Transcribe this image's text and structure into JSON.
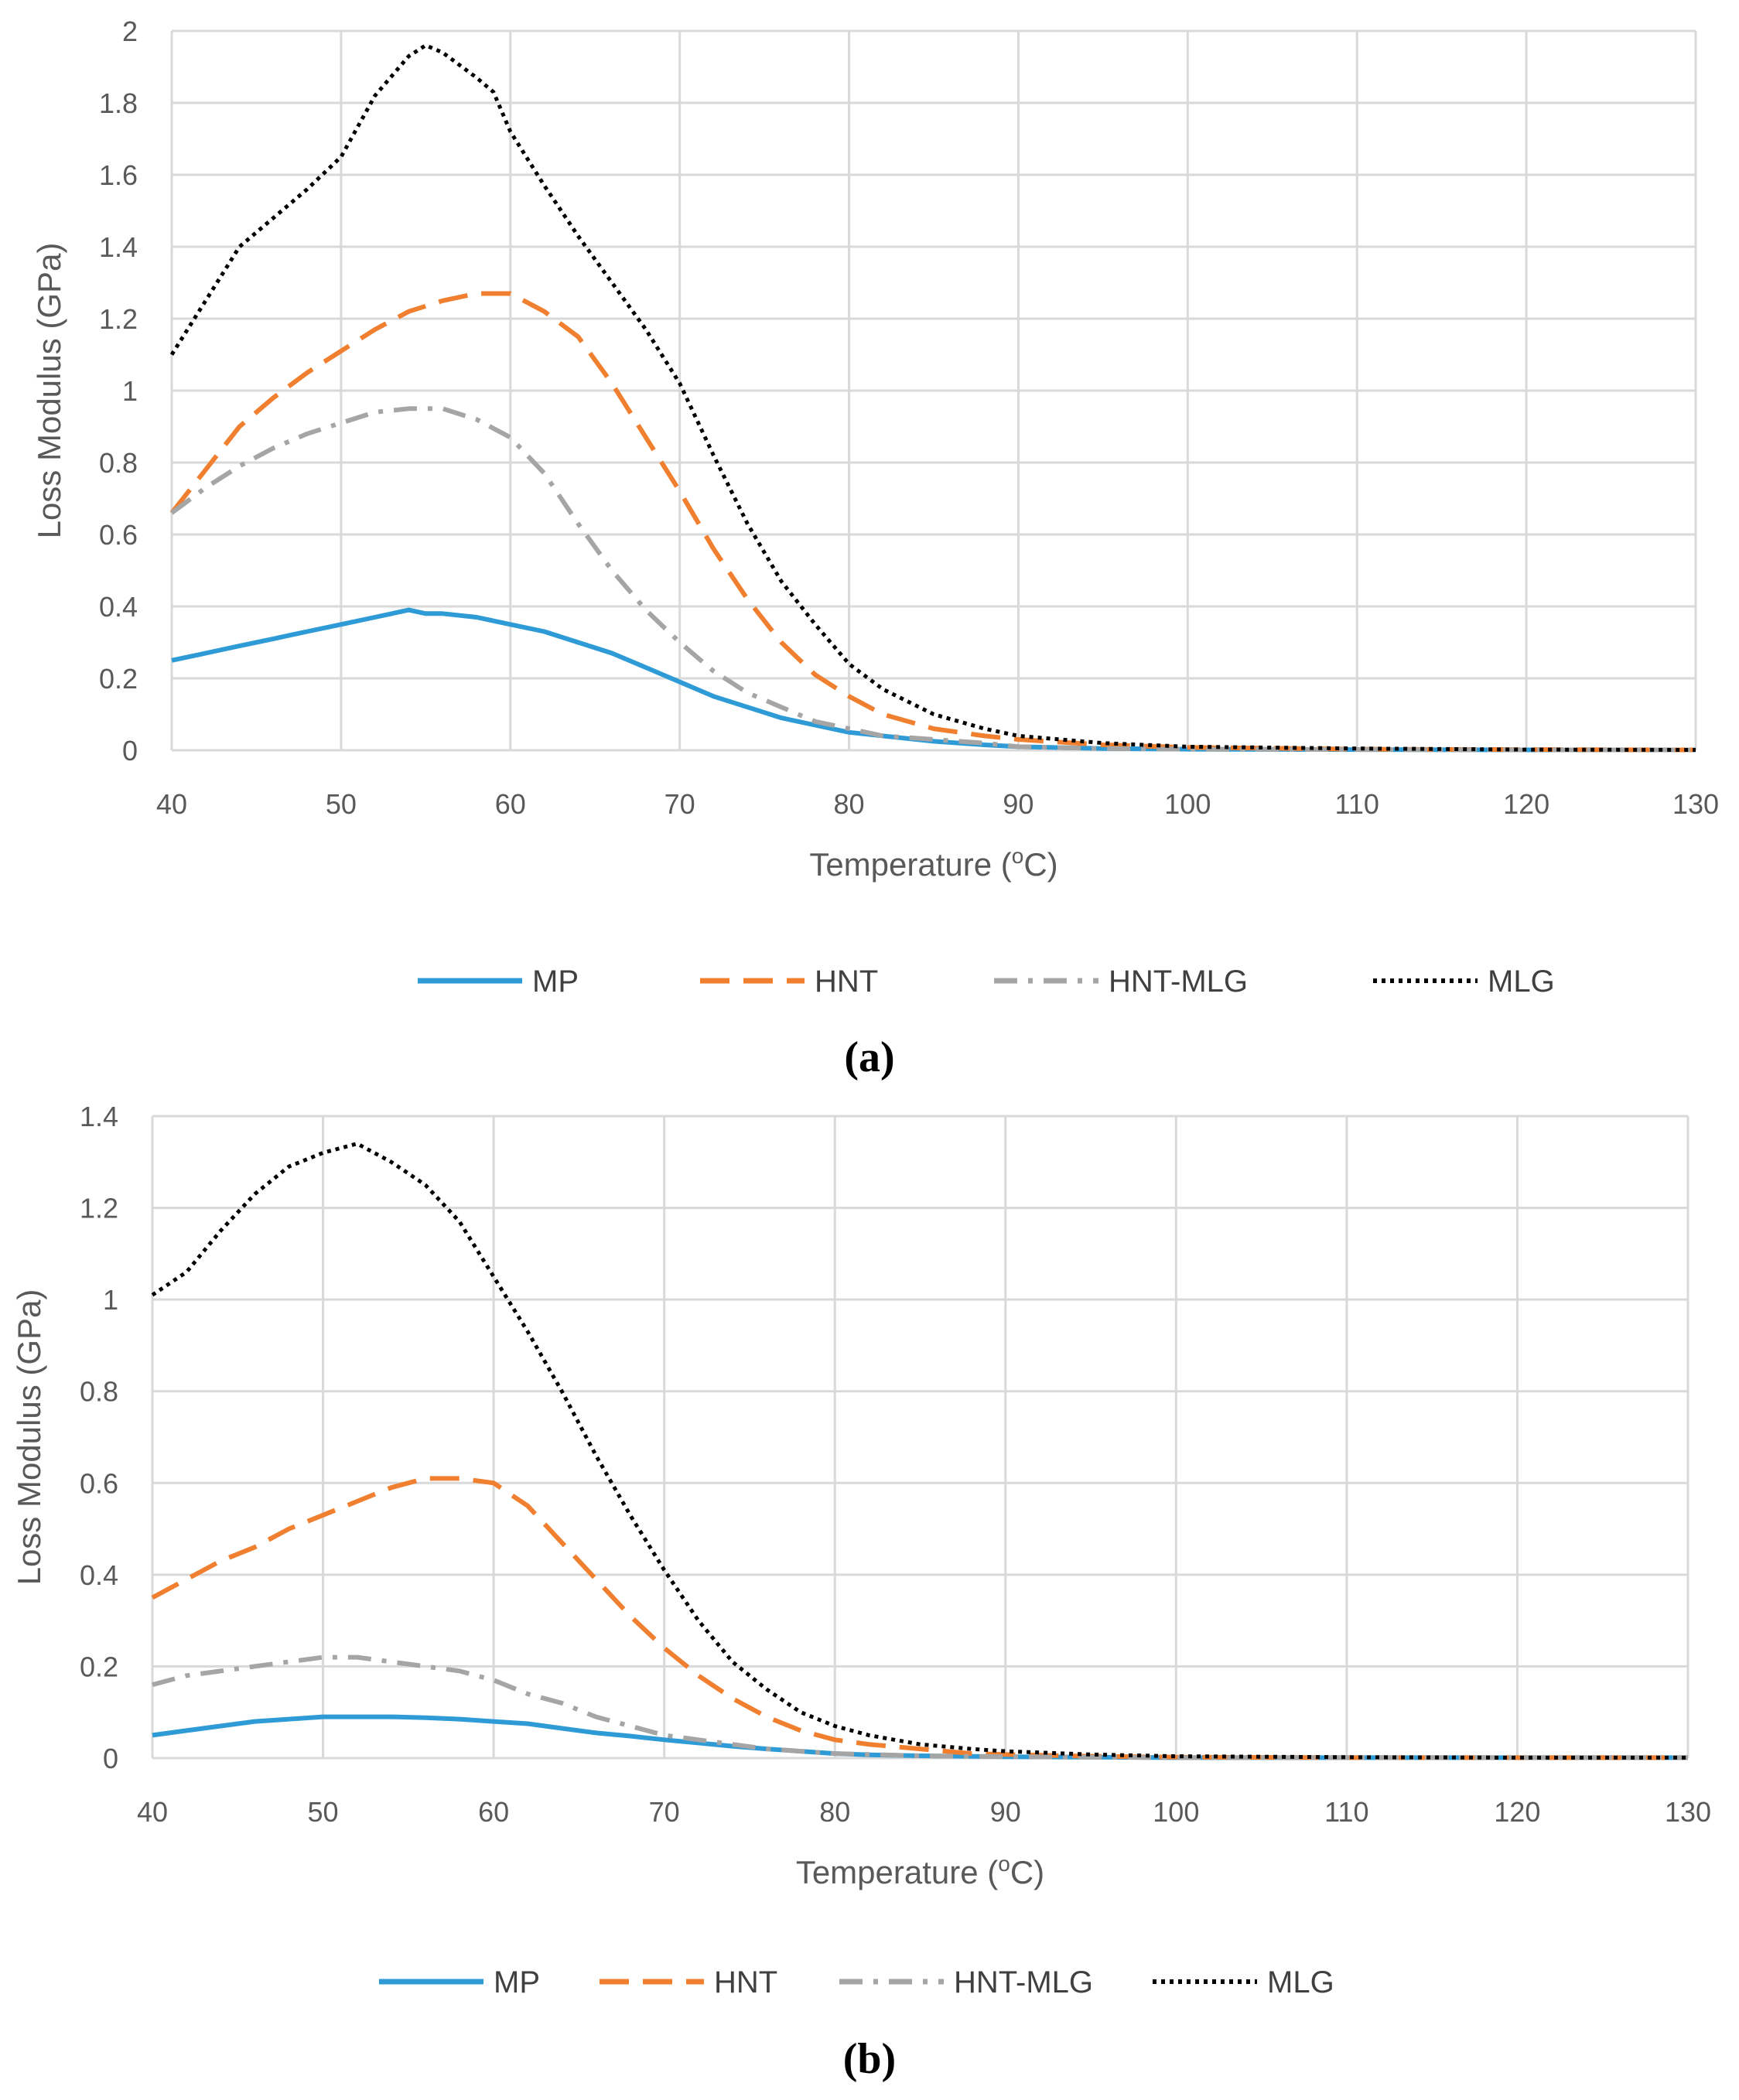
{
  "chart_data": [
    {
      "type": "line",
      "panel_label": "(a)",
      "xlabel": "Temperature (",
      "xlabel_sup": "o",
      "xlabel_tail": "C)",
      "ylabel": "Loss Modulus (GPa)",
      "xlim": [
        40,
        130
      ],
      "ylim": [
        0,
        2
      ],
      "xticks": [
        40,
        50,
        60,
        70,
        80,
        90,
        100,
        110,
        120,
        130
      ],
      "yticks": [
        0,
        0.2,
        0.4,
        0.6,
        0.8,
        1,
        1.2,
        1.4,
        1.6,
        1.8,
        2
      ],
      "xtick_labels": [
        "40",
        "50",
        "60",
        "70",
        "80",
        "90",
        "100",
        "110",
        "120",
        "130"
      ],
      "ytick_labels": [
        "0",
        "0.2",
        "0.4",
        "0.6",
        "0.8",
        "1",
        "1.2",
        "1.4",
        "1.6",
        "1.8",
        "2"
      ],
      "grid": true,
      "legend_position": "bottom",
      "series": [
        {
          "name": "MP",
          "color": "#2E9BD6",
          "style": "solid",
          "x": [
            40,
            42,
            44,
            46,
            48,
            50,
            52,
            54,
            55,
            56,
            58,
            60,
            62,
            64,
            66,
            68,
            70,
            72,
            74,
            76,
            78,
            80,
            82,
            85,
            88,
            90,
            95,
            100,
            110,
            120,
            130
          ],
          "y": [
            0.25,
            0.27,
            0.29,
            0.31,
            0.33,
            0.35,
            0.37,
            0.39,
            0.38,
            0.38,
            0.37,
            0.35,
            0.33,
            0.3,
            0.27,
            0.23,
            0.19,
            0.15,
            0.12,
            0.09,
            0.07,
            0.05,
            0.04,
            0.025,
            0.015,
            0.01,
            0.005,
            0.003,
            0.002,
            0.001,
            0.001
          ]
        },
        {
          "name": "HNT",
          "color": "#F07F2F",
          "style": "dash",
          "x": [
            40,
            42,
            44,
            46,
            48,
            50,
            52,
            54,
            56,
            58,
            59,
            60,
            62,
            64,
            66,
            68,
            70,
            72,
            74,
            76,
            78,
            80,
            82,
            85,
            88,
            90,
            95,
            100,
            110,
            120,
            130
          ],
          "y": [
            0.66,
            0.78,
            0.9,
            0.98,
            1.05,
            1.11,
            1.17,
            1.22,
            1.25,
            1.27,
            1.27,
            1.27,
            1.22,
            1.15,
            1.02,
            0.87,
            0.72,
            0.56,
            0.42,
            0.3,
            0.21,
            0.15,
            0.1,
            0.06,
            0.04,
            0.03,
            0.015,
            0.008,
            0.003,
            0.002,
            0.001
          ]
        },
        {
          "name": "HNT-MLG",
          "color": "#A5A5A5",
          "style": "dashdot",
          "x": [
            40,
            42,
            44,
            46,
            48,
            50,
            52,
            54,
            56,
            58,
            60,
            62,
            64,
            66,
            68,
            70,
            72,
            74,
            76,
            78,
            80,
            82,
            85,
            88,
            90,
            95,
            100,
            110,
            120,
            130
          ],
          "y": [
            0.66,
            0.73,
            0.79,
            0.84,
            0.88,
            0.91,
            0.94,
            0.95,
            0.95,
            0.92,
            0.87,
            0.77,
            0.63,
            0.5,
            0.39,
            0.3,
            0.22,
            0.16,
            0.12,
            0.08,
            0.06,
            0.04,
            0.03,
            0.02,
            0.01,
            0.005,
            0.003,
            0.002,
            0.001,
            0.001
          ]
        },
        {
          "name": "MLG",
          "color": "#000000",
          "style": "dot",
          "x": [
            40,
            42,
            44,
            46,
            48,
            50,
            52,
            54,
            55,
            56,
            58,
            59,
            60,
            62,
            64,
            66,
            68,
            70,
            72,
            74,
            76,
            78,
            80,
            82,
            85,
            88,
            90,
            95,
            100,
            110,
            120,
            130
          ],
          "y": [
            1.1,
            1.25,
            1.4,
            1.48,
            1.56,
            1.65,
            1.82,
            1.93,
            1.96,
            1.94,
            1.87,
            1.83,
            1.72,
            1.57,
            1.43,
            1.3,
            1.17,
            1.02,
            0.82,
            0.63,
            0.47,
            0.35,
            0.24,
            0.17,
            0.1,
            0.06,
            0.04,
            0.02,
            0.01,
            0.005,
            0.002,
            0.001
          ]
        }
      ]
    },
    {
      "type": "line",
      "panel_label": "(b)",
      "xlabel": "Temperature (",
      "xlabel_sup": "o",
      "xlabel_tail": "C)",
      "ylabel": "Loss Modulus (GPa)",
      "xlim": [
        40,
        130
      ],
      "ylim": [
        0,
        1.4
      ],
      "xticks": [
        40,
        50,
        60,
        70,
        80,
        90,
        100,
        110,
        120,
        130
      ],
      "yticks": [
        0,
        0.2,
        0.4,
        0.6,
        0.8,
        1,
        1.2,
        1.4
      ],
      "xtick_labels": [
        "40",
        "50",
        "60",
        "70",
        "80",
        "90",
        "100",
        "110",
        "120",
        "130"
      ],
      "ytick_labels": [
        "0",
        "0.2",
        "0.4",
        "0.6",
        "0.8",
        "1",
        "1.2",
        "1.4"
      ],
      "grid": true,
      "legend_position": "bottom",
      "series": [
        {
          "name": "MP",
          "color": "#2E9BD6",
          "style": "solid",
          "x": [
            40,
            42,
            44,
            46,
            48,
            50,
            52,
            54,
            56,
            58,
            60,
            62,
            64,
            66,
            68,
            70,
            72,
            74,
            76,
            78,
            80,
            82,
            85,
            90,
            95,
            100,
            110,
            120,
            130
          ],
          "y": [
            0.05,
            0.06,
            0.07,
            0.08,
            0.085,
            0.09,
            0.09,
            0.09,
            0.088,
            0.085,
            0.08,
            0.075,
            0.065,
            0.055,
            0.048,
            0.04,
            0.033,
            0.026,
            0.02,
            0.015,
            0.01,
            0.007,
            0.005,
            0.003,
            0.002,
            0.001,
            0.001,
            0.001,
            0.001
          ]
        },
        {
          "name": "HNT",
          "color": "#F07F2F",
          "style": "dash",
          "x": [
            40,
            42,
            44,
            46,
            48,
            50,
            52,
            54,
            56,
            57,
            58,
            60,
            62,
            64,
            66,
            68,
            70,
            72,
            74,
            76,
            78,
            80,
            82,
            85,
            88,
            90,
            95,
            100,
            110,
            120,
            130
          ],
          "y": [
            0.35,
            0.39,
            0.43,
            0.46,
            0.5,
            0.53,
            0.56,
            0.59,
            0.61,
            0.61,
            0.61,
            0.6,
            0.55,
            0.47,
            0.39,
            0.31,
            0.24,
            0.18,
            0.13,
            0.09,
            0.06,
            0.04,
            0.03,
            0.02,
            0.01,
            0.008,
            0.004,
            0.002,
            0.001,
            0.001,
            0.001
          ]
        },
        {
          "name": "HNT-MLG",
          "color": "#A5A5A5",
          "style": "dashdot",
          "x": [
            40,
            42,
            44,
            46,
            48,
            50,
            52,
            54,
            56,
            58,
            60,
            62,
            64,
            66,
            68,
            70,
            72,
            74,
            76,
            78,
            80,
            85,
            90,
            95,
            100,
            110,
            120,
            130
          ],
          "y": [
            0.16,
            0.18,
            0.19,
            0.2,
            0.21,
            0.22,
            0.22,
            0.21,
            0.2,
            0.19,
            0.17,
            0.14,
            0.12,
            0.09,
            0.07,
            0.05,
            0.04,
            0.03,
            0.02,
            0.015,
            0.01,
            0.005,
            0.003,
            0.002,
            0.001,
            0.001,
            0.001,
            0.001
          ]
        },
        {
          "name": "MLG",
          "color": "#000000",
          "style": "dot",
          "x": [
            40,
            42,
            44,
            46,
            48,
            50,
            52,
            54,
            56,
            58,
            60,
            62,
            64,
            66,
            68,
            70,
            72,
            74,
            76,
            78,
            80,
            82,
            85,
            88,
            90,
            95,
            100,
            110,
            120,
            130
          ],
          "y": [
            1.01,
            1.06,
            1.15,
            1.23,
            1.29,
            1.32,
            1.34,
            1.3,
            1.25,
            1.17,
            1.05,
            0.93,
            0.8,
            0.66,
            0.53,
            0.41,
            0.3,
            0.21,
            0.15,
            0.1,
            0.07,
            0.05,
            0.03,
            0.02,
            0.015,
            0.008,
            0.004,
            0.002,
            0.001,
            0.001
          ]
        }
      ]
    }
  ]
}
